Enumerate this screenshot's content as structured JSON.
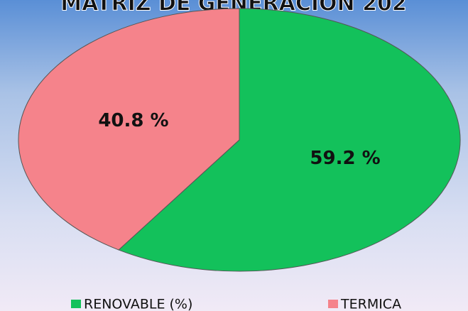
{
  "chart_data": {
    "type": "pie",
    "title": "MATRIZ DE GENERACION 202",
    "categories": [
      "RENOVABLE (%)",
      "TERMICA"
    ],
    "values": [
      59.2,
      40.8
    ],
    "value_labels": [
      "59.2 %",
      "40.8 %"
    ],
    "colors": [
      "#13c15b",
      "#f5838b"
    ],
    "legend": "bottom"
  }
}
